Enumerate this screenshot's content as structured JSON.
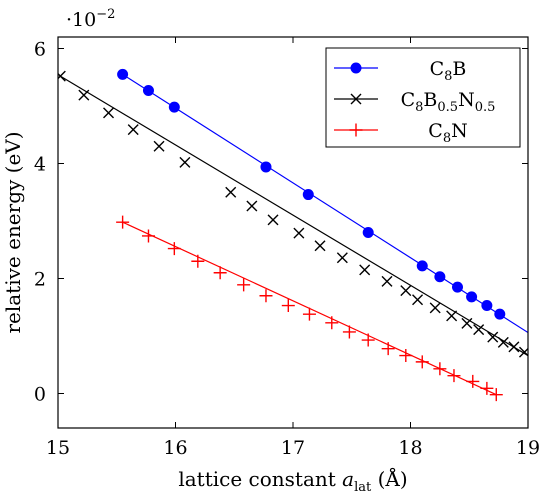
{
  "chart_data": {
    "type": "line",
    "xlabel_prefix": "lattice constant ",
    "xlabel_var": "a",
    "xlabel_sub": "lat",
    "xlabel_unit": " (Å)",
    "ylabel": "relative energy (eV)",
    "y_scale_base": "·10",
    "y_scale_exp": "−2",
    "xlim": [
      15,
      19
    ],
    "ylim": [
      -0.6,
      6.2
    ],
    "x_ticks": [
      15,
      16,
      17,
      18,
      19
    ],
    "y_ticks": [
      0,
      2,
      4,
      6
    ],
    "grid": false,
    "legend_position": "top-right",
    "series": [
      {
        "name_parts": [
          [
            "C",
            "n"
          ],
          [
            "8",
            "s"
          ],
          [
            "B",
            "n"
          ]
        ],
        "color": "#0000ff",
        "marker": "dot",
        "points": [
          [
            15.55,
            5.55
          ],
          [
            15.77,
            5.27
          ],
          [
            15.99,
            4.98
          ],
          [
            16.77,
            3.94
          ],
          [
            17.13,
            3.46
          ],
          [
            17.64,
            2.8
          ],
          [
            18.1,
            2.22
          ],
          [
            18.25,
            2.03
          ],
          [
            18.4,
            1.85
          ],
          [
            18.52,
            1.68
          ],
          [
            18.65,
            1.53
          ],
          [
            18.76,
            1.38
          ]
        ],
        "line": [
          [
            15.55,
            5.55
          ],
          [
            19.0,
            1.06
          ]
        ]
      },
      {
        "name_parts": [
          [
            "C",
            "n"
          ],
          [
            "8",
            "s"
          ],
          [
            "B",
            "n"
          ],
          [
            "0.5",
            "s"
          ],
          [
            "N",
            "n"
          ],
          [
            "0.5",
            "s"
          ]
        ],
        "color": "#000000",
        "marker": "cross",
        "points": [
          [
            15.02,
            5.52
          ],
          [
            15.22,
            5.19
          ],
          [
            15.43,
            4.88
          ],
          [
            15.64,
            4.59
          ],
          [
            15.86,
            4.3
          ],
          [
            16.08,
            4.02
          ],
          [
            16.47,
            3.5
          ],
          [
            16.65,
            3.26
          ],
          [
            16.83,
            3.02
          ],
          [
            17.05,
            2.79
          ],
          [
            17.23,
            2.57
          ],
          [
            17.42,
            2.36
          ],
          [
            17.61,
            2.15
          ],
          [
            17.8,
            1.95
          ],
          [
            17.96,
            1.79
          ],
          [
            18.06,
            1.63
          ],
          [
            18.21,
            1.49
          ],
          [
            18.35,
            1.35
          ],
          [
            18.48,
            1.22
          ],
          [
            18.58,
            1.11
          ],
          [
            18.7,
            0.98
          ],
          [
            18.79,
            0.89
          ],
          [
            18.88,
            0.81
          ],
          [
            18.97,
            0.72
          ]
        ],
        "line": [
          [
            15.02,
            5.52
          ],
          [
            19.0,
            0.66
          ]
        ]
      },
      {
        "name_parts": [
          [
            "C",
            "n"
          ],
          [
            "8",
            "s"
          ],
          [
            "N",
            "n"
          ]
        ],
        "color": "#ff0000",
        "marker": "plus",
        "points": [
          [
            15.55,
            2.98
          ],
          [
            15.77,
            2.74
          ],
          [
            15.99,
            2.52
          ],
          [
            16.19,
            2.3
          ],
          [
            16.38,
            2.1
          ],
          [
            16.58,
            1.89
          ],
          [
            16.77,
            1.7
          ],
          [
            16.96,
            1.53
          ],
          [
            17.14,
            1.38
          ],
          [
            17.33,
            1.23
          ],
          [
            17.48,
            1.07
          ],
          [
            17.64,
            0.93
          ],
          [
            17.81,
            0.78
          ],
          [
            17.96,
            0.66
          ],
          [
            18.1,
            0.55
          ],
          [
            18.25,
            0.43
          ],
          [
            18.37,
            0.31
          ],
          [
            18.53,
            0.21
          ],
          [
            18.65,
            0.09
          ],
          [
            18.73,
            -0.02
          ]
        ],
        "line": [
          [
            15.55,
            2.98
          ],
          [
            18.73,
            -0.02
          ]
        ]
      }
    ]
  }
}
